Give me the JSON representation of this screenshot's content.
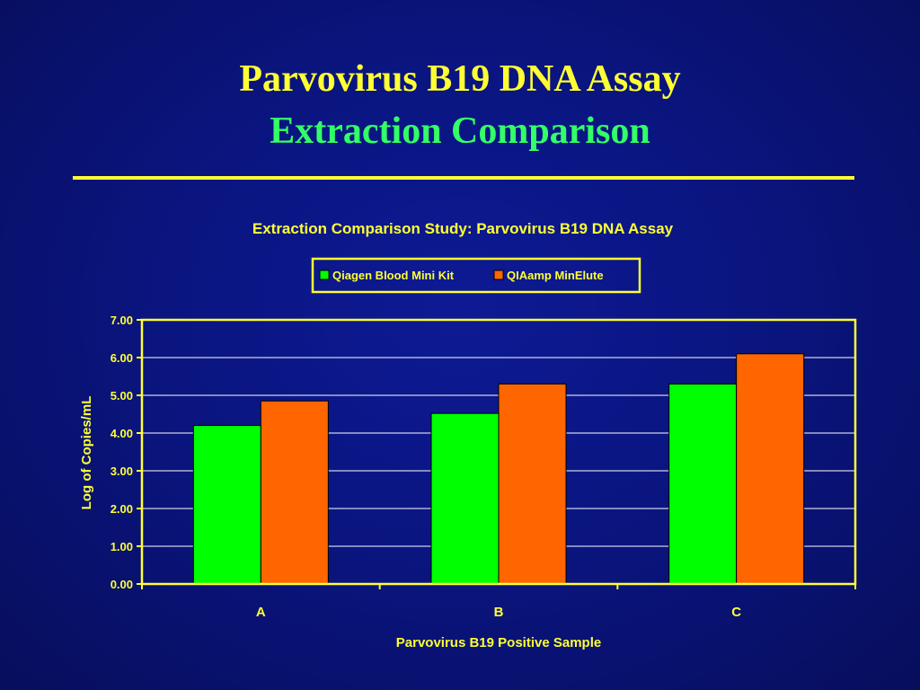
{
  "slide": {
    "title_line1": "Parvovirus B19 DNA Assay",
    "title_line2": "Extraction Comparison",
    "title_color_primary": "#ffff33",
    "title_color_secondary": "#33ff66",
    "background_color": "#0a1580"
  },
  "chart_data": {
    "type": "bar",
    "title": "Extraction Comparison Study:  Parvovirus B19 DNA Assay",
    "xlabel": "Parvovirus B19 Positive Sample",
    "ylabel": "Log of Copies/mL",
    "categories": [
      "A",
      "B",
      "C"
    ],
    "ylim": [
      0,
      7
    ],
    "yticks": [
      "0.00",
      "1.00",
      "2.00",
      "3.00",
      "4.00",
      "5.00",
      "6.00",
      "7.00"
    ],
    "grid": true,
    "legend_position": "top-center",
    "series": [
      {
        "name": "Qiagen Blood Mini Kit",
        "color": "#00ff00",
        "values": [
          4.2,
          4.52,
          5.3
        ]
      },
      {
        "name": "QIAamp MinElute",
        "color": "#ff6600",
        "values": [
          4.85,
          5.3,
          6.1
        ]
      }
    ]
  }
}
